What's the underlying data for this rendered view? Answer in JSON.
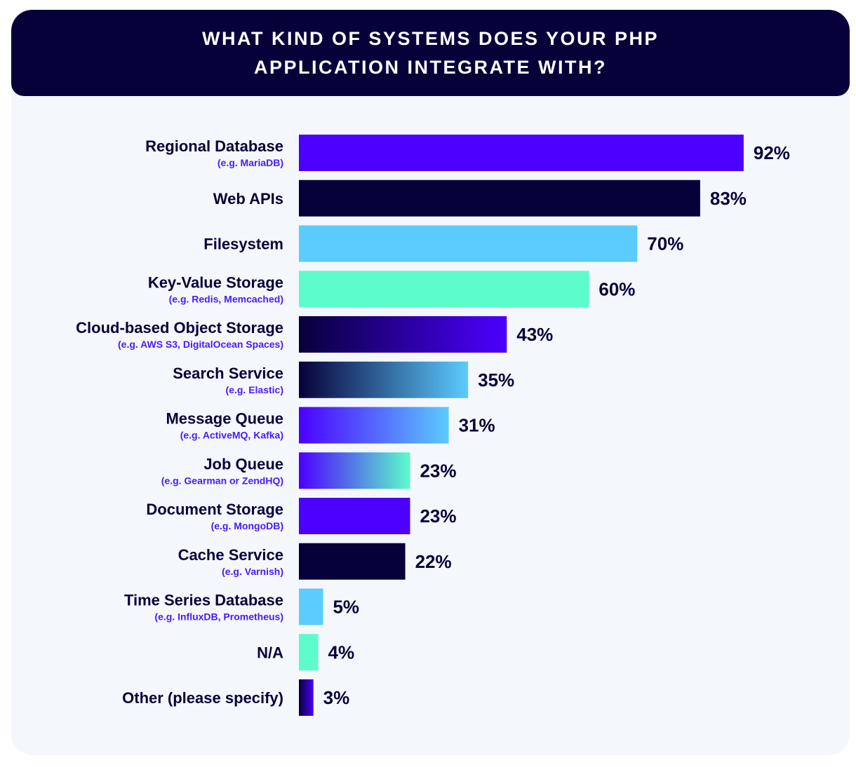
{
  "chart_data": {
    "type": "bar",
    "orientation": "horizontal",
    "title": "WHAT KIND OF SYSTEMS DOES YOUR PHP APPLICATION INTEGRATE WITH?",
    "categories": [
      "Regional Database",
      "Web APIs",
      "Filesystem",
      "Key-Value Storage",
      "Cloud-based Object Storage",
      "Search Service",
      "Message Queue",
      "Job Queue",
      "Document Storage",
      "Cache Service",
      "Time Series Database",
      "N/A",
      "Other (please specify)"
    ],
    "subtitles": [
      "(e.g. MariaDB)",
      "",
      "",
      "(e.g. Redis, Memcached)",
      "(e.g. AWS S3, DigitalOcean Spaces)",
      "(e.g. Elastic)",
      "(e.g. ActiveMQ, Kafka)",
      "(e.g. Gearman or ZendHQ)",
      "(e.g. MongoDB)",
      "(e.g. Varnish)",
      "(e.g. InfluxDB, Prometheus)",
      "",
      ""
    ],
    "values": [
      92,
      83,
      70,
      60,
      43,
      35,
      31,
      23,
      23,
      22,
      5,
      4,
      3
    ],
    "value_labels": [
      "92%",
      "83%",
      "70%",
      "60%",
      "43%",
      "35%",
      "31%",
      "23%",
      "23%",
      "22%",
      "5%",
      "4%",
      "3%"
    ],
    "xlim": [
      0,
      100
    ],
    "grid": false,
    "legend": "none",
    "colors": {
      "violet": "#4c00ff",
      "navy": "#07013a",
      "sky": "#5ccbfd",
      "mint": "#5cfdca",
      "subtitle": "#4a1bff"
    },
    "bar_fills": [
      [
        "#4c00ff"
      ],
      [
        "#07013a"
      ],
      [
        "#5ccbfd"
      ],
      [
        "#5cfdca"
      ],
      [
        "#07013a",
        "#4c00ff"
      ],
      [
        "#07013a",
        "#5ccbfd"
      ],
      [
        "#4c00ff",
        "#5ccbfd"
      ],
      [
        "#4c00ff",
        "#5cfdca"
      ],
      [
        "#4c00ff"
      ],
      [
        "#07013a"
      ],
      [
        "#5ccbfd"
      ],
      [
        "#5cfdca"
      ],
      [
        "#07013a",
        "#4c00ff"
      ]
    ]
  }
}
